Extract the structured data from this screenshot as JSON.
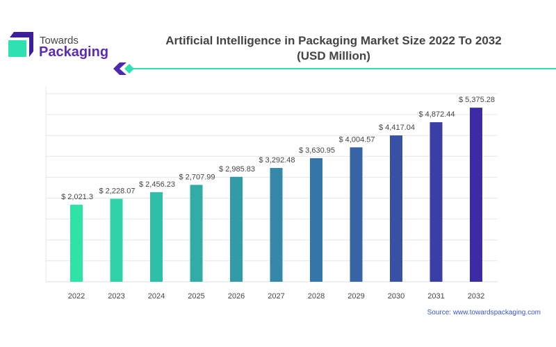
{
  "logo": {
    "line1": "Towards",
    "line2": "Packaging"
  },
  "source": "Source: www.towardspackaging.com",
  "chart_data": {
    "type": "bar",
    "title": "Artificial Intelligence in Packaging Market Size 2022 To 2032",
    "subtitle": "(USD Million)",
    "categories": [
      "2022",
      "2023",
      "2024",
      "2025",
      "2026",
      "2027",
      "2028",
      "2029",
      "2030",
      "2031",
      "2032"
    ],
    "values": [
      2021.3,
      2228.07,
      2456.23,
      2707.99,
      2985.83,
      3292.48,
      3630.95,
      4004.57,
      4417.04,
      4872.44,
      5375.28
    ],
    "labels": [
      "$ 2,021.3",
      "$ 2,228.07",
      "$ 2,456.23",
      "$ 2,707.99",
      "$ 2,985.83",
      "$ 3,292.48",
      "$ 3,630.95",
      "$ 4,004.57",
      "$ 4,417.04",
      "$ 4,872.44",
      "$ 5,375.28"
    ],
    "grid": true,
    "colors": {
      "start": "#2ee3a8",
      "end": "#3b2ca6"
    }
  }
}
